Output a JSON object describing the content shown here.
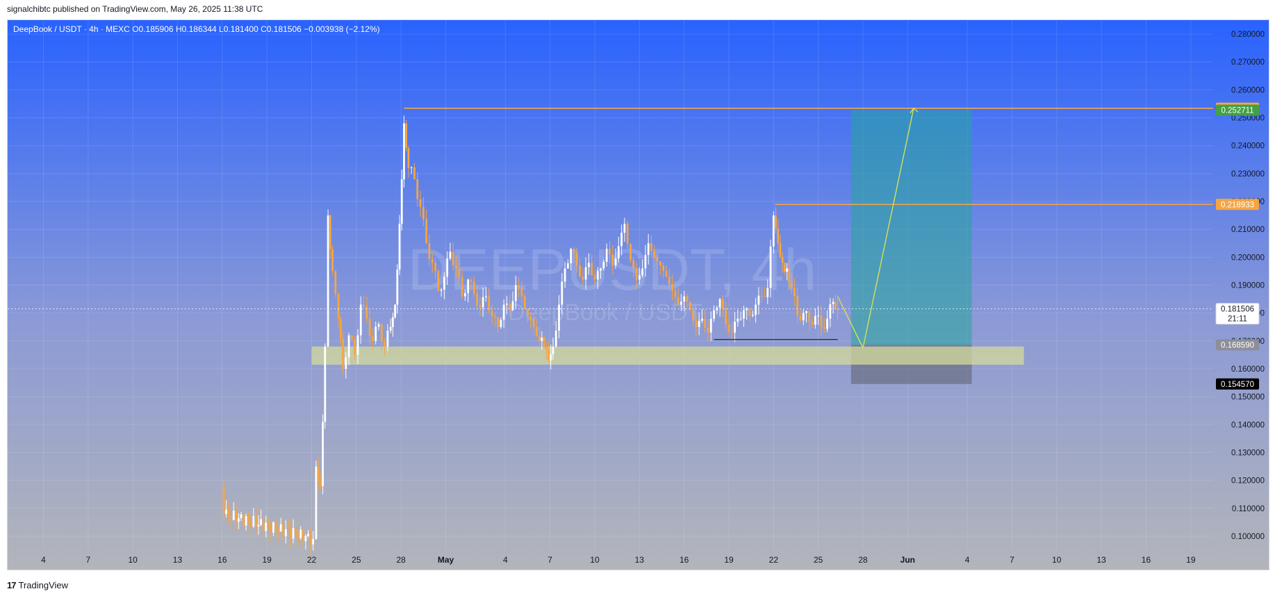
{
  "header": {
    "published_text": "signalchibtc published on TradingView.com, May 26, 2025 11:38 UTC"
  },
  "symbol_bar": {
    "name": "DeepBook / USDT · 4h · MEXC",
    "o_label": "O",
    "o_value": "0.185906",
    "h_label": "H",
    "h_value": "0.186344",
    "l_label": "L",
    "l_value": "0.181400",
    "c_label": "C",
    "c_value": "0.181506",
    "change": "−0.003938 (−2.12%)"
  },
  "watermark": {
    "title": "DEEPUSDT, 4h",
    "subtitle": "DeepBook / USDT"
  },
  "footer": {
    "logo_glyph": "17",
    "brand": "TradingView"
  },
  "colors": {
    "bg_top": "#2962ff",
    "bg_bottom": "#b3b5ba",
    "candle_up": "#ffffff",
    "candle_down": "#f7a540",
    "level_line": "#f7a540",
    "target_zone": "#26a69a",
    "stop_zone": "#5d606b",
    "support_zone": "#d4d99a",
    "projection": "#d4e157"
  },
  "chart_data": {
    "type": "candlestick",
    "symbol": "DEEPUSDT",
    "interval": "4h",
    "ylim": [
      0.095,
      0.285
    ],
    "y_ticks": [
      "0.280000",
      "0.270000",
      "0.260000",
      "0.250000",
      "0.240000",
      "0.230000",
      "0.220000",
      "0.210000",
      "0.200000",
      "0.190000",
      "0.180000",
      "0.170000",
      "0.160000",
      "0.150000",
      "0.140000",
      "0.130000",
      "0.120000",
      "0.110000",
      "0.100000"
    ],
    "x_ticks": [
      "4",
      "7",
      "10",
      "13",
      "16",
      "19",
      "22",
      "25",
      "28",
      "May",
      "4",
      "7",
      "10",
      "13",
      "16",
      "19",
      "22",
      "25",
      "28",
      "Jun",
      "4",
      "7",
      "10",
      "13",
      "16",
      "19"
    ],
    "x_tick_days": [
      4,
      7,
      10,
      13,
      16,
      19,
      22,
      25,
      28,
      31,
      35,
      38,
      41,
      44,
      47,
      50,
      53,
      56,
      59,
      62,
      66,
      69,
      72,
      75,
      78,
      81
    ],
    "x_range_days": [
      1.6,
      82.5
    ],
    "price_path": [
      [
        16.0,
        0.118
      ],
      [
        16.1,
        0.108
      ],
      [
        22.1,
        0.099
      ],
      [
        22.3,
        0.125
      ],
      [
        22.6,
        0.118
      ],
      [
        22.9,
        0.168
      ],
      [
        23.1,
        0.215
      ],
      [
        23.4,
        0.195
      ],
      [
        23.8,
        0.178
      ],
      [
        24.1,
        0.16
      ],
      [
        24.5,
        0.172
      ],
      [
        24.9,
        0.165
      ],
      [
        25.3,
        0.183
      ],
      [
        25.7,
        0.178
      ],
      [
        26.1,
        0.17
      ],
      [
        26.5,
        0.176
      ],
      [
        26.9,
        0.168
      ],
      [
        27.3,
        0.175
      ],
      [
        27.6,
        0.183
      ],
      [
        27.9,
        0.212
      ],
      [
        28.2,
        0.248
      ],
      [
        28.5,
        0.232
      ],
      [
        28.9,
        0.228
      ],
      [
        29.3,
        0.218
      ],
      [
        29.7,
        0.205
      ],
      [
        30.1,
        0.198
      ],
      [
        30.5,
        0.188
      ],
      [
        30.9,
        0.193
      ],
      [
        31.3,
        0.202
      ],
      [
        31.7,
        0.196
      ],
      [
        32.1,
        0.186
      ],
      [
        32.5,
        0.192
      ],
      [
        32.9,
        0.187
      ],
      [
        33.3,
        0.182
      ],
      [
        33.7,
        0.186
      ],
      [
        34.1,
        0.179
      ],
      [
        34.5,
        0.175
      ],
      [
        34.9,
        0.183
      ],
      [
        35.3,
        0.181
      ],
      [
        35.7,
        0.19
      ],
      [
        36.1,
        0.186
      ],
      [
        36.5,
        0.179
      ],
      [
        36.9,
        0.175
      ],
      [
        37.3,
        0.17
      ],
      [
        37.6,
        0.168
      ],
      [
        37.9,
        0.163
      ],
      [
        38.2,
        0.168
      ],
      [
        38.6,
        0.183
      ],
      [
        39.0,
        0.196
      ],
      [
        39.4,
        0.203
      ],
      [
        39.8,
        0.197
      ],
      [
        40.2,
        0.192
      ],
      [
        40.6,
        0.198
      ],
      [
        41.0,
        0.192
      ],
      [
        41.4,
        0.196
      ],
      [
        41.8,
        0.203
      ],
      [
        42.2,
        0.197
      ],
      [
        42.6,
        0.204
      ],
      [
        43.0,
        0.212
      ],
      [
        43.4,
        0.199
      ],
      [
        43.8,
        0.192
      ],
      [
        44.2,
        0.196
      ],
      [
        44.6,
        0.205
      ],
      [
        45.0,
        0.2
      ],
      [
        45.4,
        0.197
      ],
      [
        45.8,
        0.193
      ],
      [
        46.2,
        0.188
      ],
      [
        46.6,
        0.183
      ],
      [
        47.0,
        0.186
      ],
      [
        47.4,
        0.181
      ],
      [
        47.8,
        0.175
      ],
      [
        48.2,
        0.178
      ],
      [
        48.6,
        0.173
      ],
      [
        49.0,
        0.181
      ],
      [
        49.4,
        0.185
      ],
      [
        49.8,
        0.176
      ],
      [
        50.2,
        0.173
      ],
      [
        50.6,
        0.178
      ],
      [
        51.0,
        0.181
      ],
      [
        51.4,
        0.179
      ],
      [
        51.8,
        0.183
      ],
      [
        52.2,
        0.186
      ],
      [
        52.6,
        0.189
      ],
      [
        53.0,
        0.215
      ],
      [
        53.3,
        0.205
      ],
      [
        53.6,
        0.198
      ],
      [
        53.9,
        0.196
      ],
      [
        54.2,
        0.189
      ],
      [
        54.6,
        0.179
      ],
      [
        55.0,
        0.18
      ],
      [
        55.4,
        0.177
      ],
      [
        55.8,
        0.179
      ],
      [
        56.2,
        0.175
      ],
      [
        56.6,
        0.178
      ],
      [
        57.0,
        0.184
      ],
      [
        57.3,
        0.181
      ]
    ],
    "levels": [
      {
        "label": "0.253427",
        "value": 0.253427,
        "color": "#f7a540"
      },
      {
        "label": "0.252711",
        "value": 0.252711,
        "color": "#43a047"
      },
      {
        "label": "0.218933",
        "value": 0.218933,
        "color": "#f7a540"
      },
      {
        "label": "0.181506",
        "value": 0.181506,
        "color": "#ffffff",
        "sub": "21:11"
      },
      {
        "label": "0.168590",
        "value": 0.16859,
        "color": "#8c8f99"
      },
      {
        "label": "0.154570",
        "value": 0.15457,
        "color": "#000000"
      }
    ],
    "zones": {
      "support_band": [
        0.1615,
        0.168
      ],
      "long_position": {
        "entry": 0.16859,
        "target": 0.252711,
        "stop": 0.15457
      }
    },
    "projection_path": [
      [
        57.3,
        0.186
      ],
      [
        59.0,
        0.1675
      ],
      [
        62.4,
        0.2534
      ]
    ]
  }
}
